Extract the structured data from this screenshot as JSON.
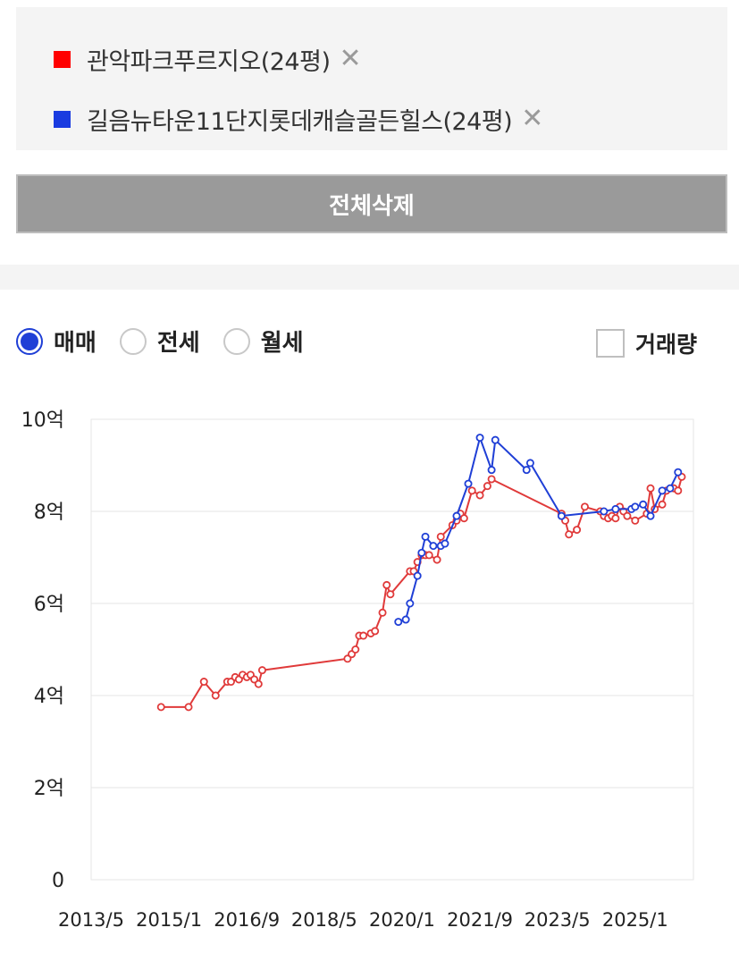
{
  "compare": {
    "items": [
      {
        "name": "관악파크푸르지오(24평)",
        "color": "#ff0000",
        "close": "✕"
      },
      {
        "name": "길음뉴타운11단지롯데캐슬골든힐스(24평)",
        "color": "#1a3be0",
        "close": "✕"
      }
    ],
    "clear_label": "전체삭제"
  },
  "options": {
    "radios": [
      {
        "label": "매매",
        "selected": true
      },
      {
        "label": "전세",
        "selected": false
      },
      {
        "label": "월세",
        "selected": false
      }
    ],
    "volume_label": "거래량",
    "volume_checked": false
  },
  "chart_data": {
    "type": "line",
    "x_unit": "year",
    "xlim": [
      2013.33,
      2026.25
    ],
    "ylim": [
      0,
      10
    ],
    "y_ticks": [
      0,
      2,
      4,
      6,
      8,
      10
    ],
    "y_tick_labels": [
      "0",
      "2억",
      "4억",
      "6억",
      "8억",
      "10억"
    ],
    "x_ticks": [
      2013.33,
      2015.0,
      2016.67,
      2018.33,
      2020.0,
      2021.67,
      2023.33,
      2025.0
    ],
    "x_tick_labels": [
      "2013/5",
      "2015/1",
      "2016/9",
      "2018/5",
      "2020/1",
      "2021/9",
      "2023/5",
      "2025/1"
    ],
    "grid": "horizontal",
    "series": [
      {
        "name": "관악파크푸르지오(24평)",
        "color": "#e03a3a",
        "points": [
          [
            2014.83,
            3.75
          ],
          [
            2015.42,
            3.75
          ],
          [
            2015.75,
            4.3
          ],
          [
            2016.0,
            4.0
          ],
          [
            2016.25,
            4.3
          ],
          [
            2016.33,
            4.3
          ],
          [
            2016.42,
            4.4
          ],
          [
            2016.5,
            4.35
          ],
          [
            2016.58,
            4.45
          ],
          [
            2016.67,
            4.4
          ],
          [
            2016.75,
            4.45
          ],
          [
            2016.83,
            4.35
          ],
          [
            2016.92,
            4.25
          ],
          [
            2017.0,
            4.55
          ],
          [
            2018.83,
            4.8
          ],
          [
            2018.92,
            4.9
          ],
          [
            2019.0,
            5.0
          ],
          [
            2019.08,
            5.3
          ],
          [
            2019.17,
            5.3
          ],
          [
            2019.33,
            5.35
          ],
          [
            2019.42,
            5.4
          ],
          [
            2019.58,
            5.8
          ],
          [
            2019.67,
            6.4
          ],
          [
            2019.75,
            6.2
          ],
          [
            2020.17,
            6.7
          ],
          [
            2020.25,
            6.7
          ],
          [
            2020.33,
            6.9
          ],
          [
            2020.42,
            7.05
          ],
          [
            2020.5,
            7.05
          ],
          [
            2020.58,
            7.05
          ],
          [
            2020.75,
            6.95
          ],
          [
            2020.83,
            7.45
          ],
          [
            2021.08,
            7.7
          ],
          [
            2021.17,
            7.8
          ],
          [
            2021.25,
            7.95
          ],
          [
            2021.33,
            7.85
          ],
          [
            2021.5,
            8.45
          ],
          [
            2021.67,
            8.35
          ],
          [
            2021.83,
            8.55
          ],
          [
            2021.92,
            8.7
          ],
          [
            2023.42,
            7.95
          ],
          [
            2023.5,
            7.8
          ],
          [
            2023.58,
            7.5
          ],
          [
            2023.75,
            7.6
          ],
          [
            2023.92,
            8.1
          ],
          [
            2024.25,
            8.0
          ],
          [
            2024.33,
            7.9
          ],
          [
            2024.42,
            7.85
          ],
          [
            2024.5,
            7.9
          ],
          [
            2024.58,
            7.85
          ],
          [
            2024.67,
            8.1
          ],
          [
            2024.75,
            8.0
          ],
          [
            2024.83,
            7.9
          ],
          [
            2025.0,
            7.8
          ],
          [
            2025.25,
            7.95
          ],
          [
            2025.33,
            8.5
          ],
          [
            2025.42,
            8.05
          ],
          [
            2025.58,
            8.15
          ],
          [
            2025.67,
            8.45
          ],
          [
            2025.83,
            8.5
          ],
          [
            2025.92,
            8.45
          ],
          [
            2026.0,
            8.75
          ]
        ]
      },
      {
        "name": "길음뉴타운11단지롯데캐슬골든힐스(24평)",
        "color": "#1f3fd6",
        "points": [
          [
            2019.92,
            5.6
          ],
          [
            2020.08,
            5.65
          ],
          [
            2020.17,
            6.0
          ],
          [
            2020.33,
            6.6
          ],
          [
            2020.42,
            7.1
          ],
          [
            2020.5,
            7.45
          ],
          [
            2020.67,
            7.25
          ],
          [
            2020.83,
            7.25
          ],
          [
            2020.92,
            7.3
          ],
          [
            2021.17,
            7.9
          ],
          [
            2021.42,
            8.6
          ],
          [
            2021.67,
            9.6
          ],
          [
            2021.92,
            8.9
          ],
          [
            2022.0,
            9.55
          ],
          [
            2022.67,
            8.9
          ],
          [
            2022.75,
            9.05
          ],
          [
            2023.42,
            7.9
          ],
          [
            2024.33,
            8.0
          ],
          [
            2024.58,
            8.05
          ],
          [
            2024.92,
            8.05
          ],
          [
            2025.0,
            8.1
          ],
          [
            2025.17,
            8.15
          ],
          [
            2025.33,
            7.9
          ],
          [
            2025.58,
            8.45
          ],
          [
            2025.75,
            8.5
          ],
          [
            2025.92,
            8.85
          ]
        ]
      }
    ]
  }
}
